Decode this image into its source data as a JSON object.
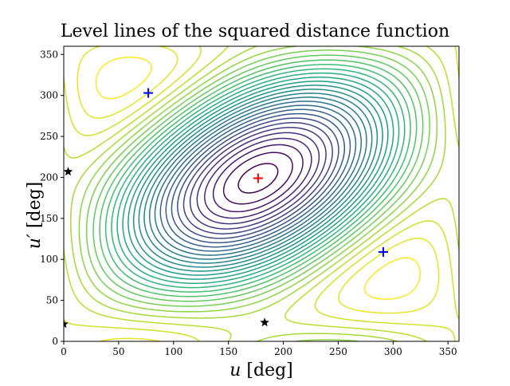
{
  "chart_data": {
    "type": "contour",
    "title": "Level lines of the squared distance function",
    "xlabel": {
      "symbol": "u",
      "unit": "[deg]"
    },
    "ylabel": {
      "symbol": "u′",
      "unit": "[deg]"
    },
    "xlim": [
      0,
      360
    ],
    "ylim": [
      0,
      360
    ],
    "xticks": [
      0,
      50,
      100,
      150,
      200,
      250,
      300,
      350
    ],
    "yticks": [
      0,
      50,
      100,
      150,
      200,
      250,
      300,
      350
    ],
    "colormap": "viridis",
    "grid": false,
    "maximum": {
      "x": 177,
      "y": 199,
      "color": "#ff0000",
      "marker": "plus"
    },
    "saddle_points": [
      {
        "x": 77,
        "y": 303,
        "color": "#0000ff",
        "marker": "plus"
      },
      {
        "x": 291,
        "y": 109,
        "color": "#0000ff",
        "marker": "plus"
      }
    ],
    "star_points": [
      {
        "x": 4,
        "y": 207,
        "color": "#000000",
        "marker": "star"
      },
      {
        "x": 183,
        "y": 23,
        "color": "#000000",
        "marker": "star"
      },
      {
        "x": 0,
        "y": 21,
        "color": "#000000",
        "marker": "star"
      }
    ],
    "num_levels": 30
  }
}
